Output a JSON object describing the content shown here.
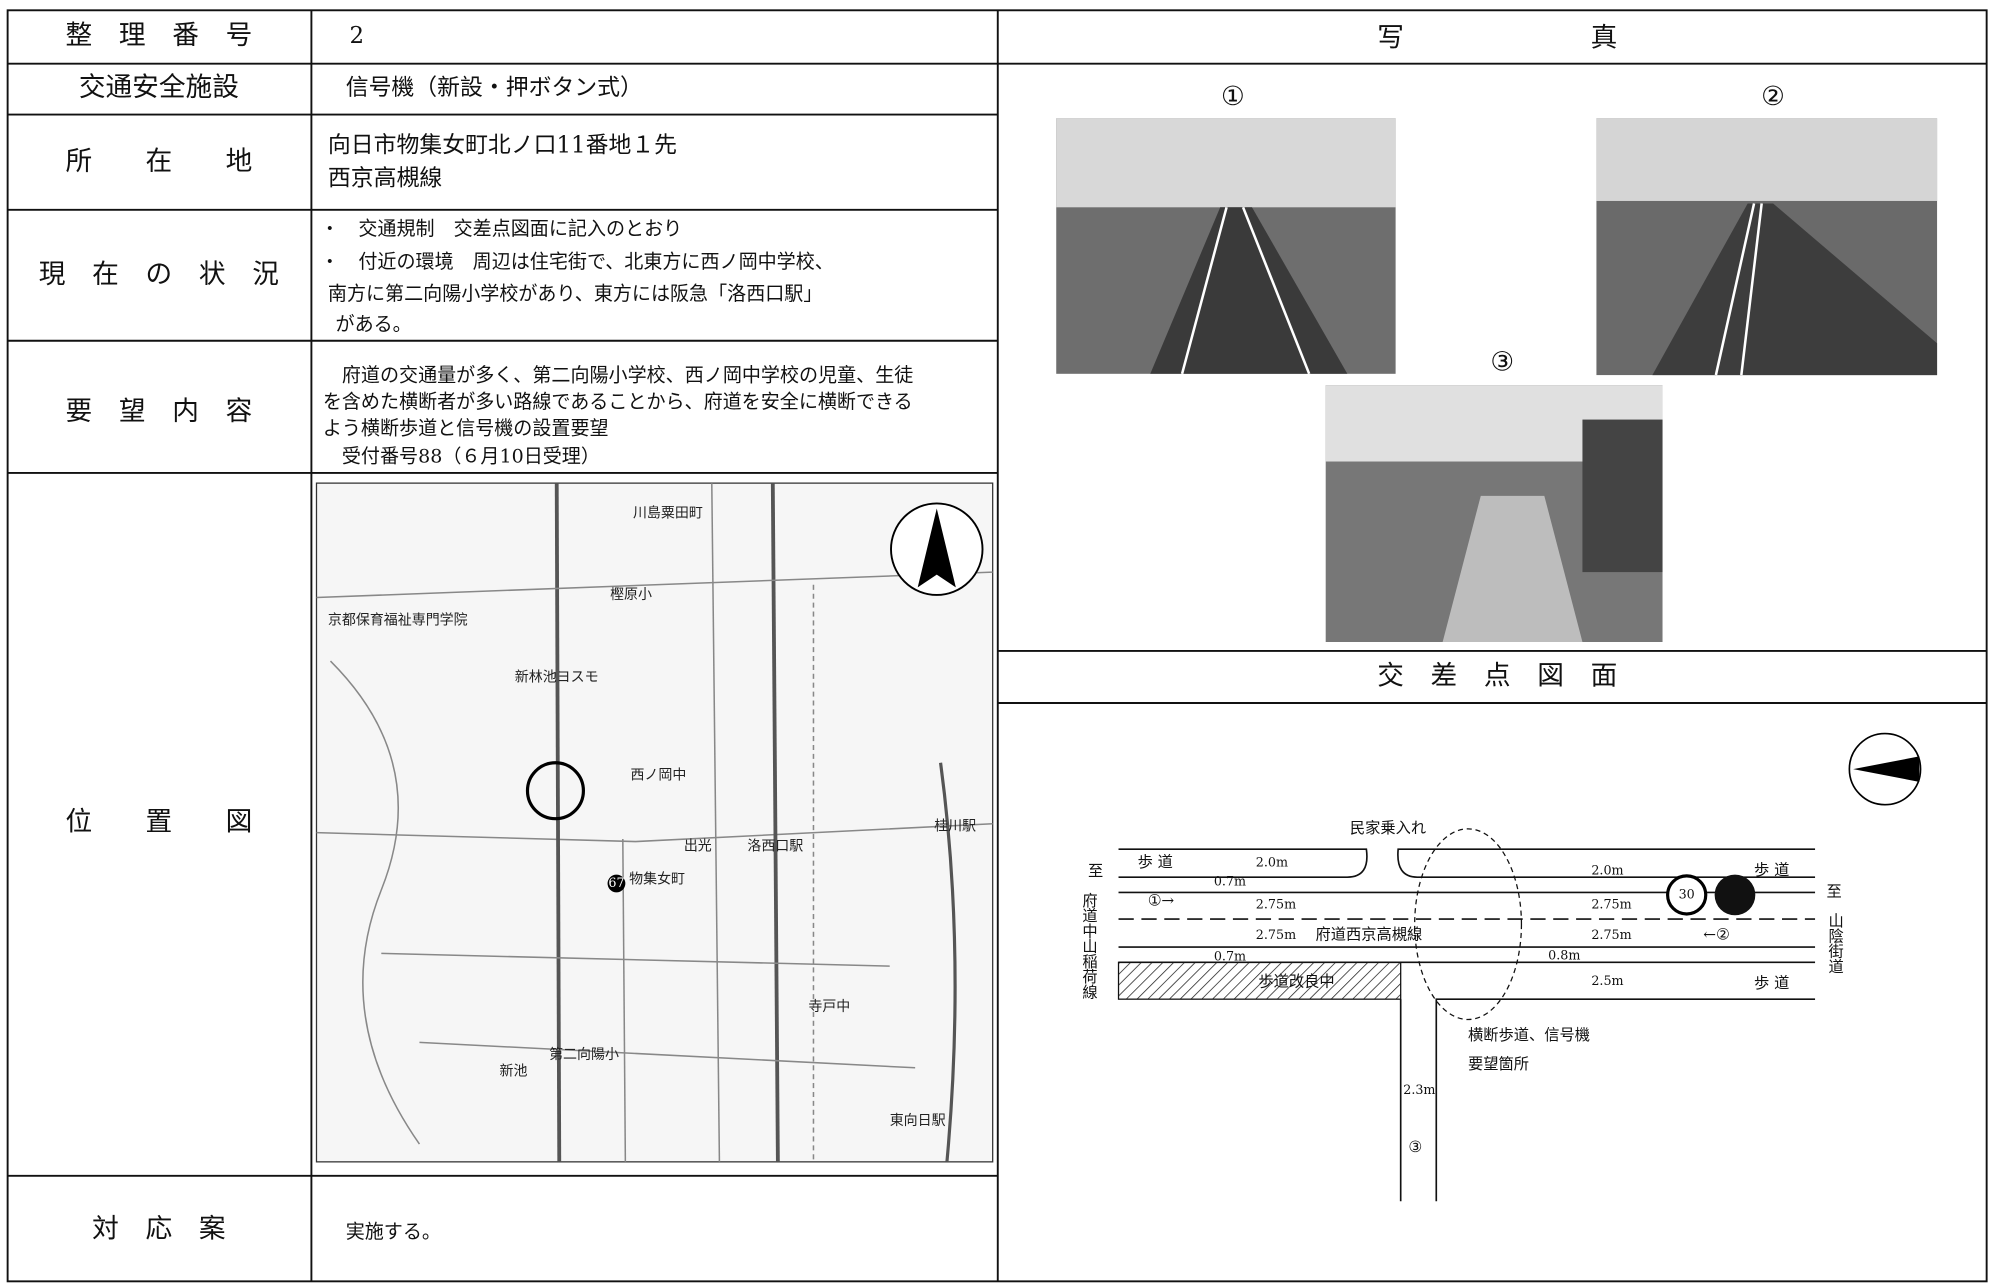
{
  "table": {
    "rows": [
      {
        "label": "整　理　番　号",
        "value": [
          "2"
        ]
      },
      {
        "label": "交通安全施設",
        "value": [
          "信号機（新設・押ボタン式）"
        ]
      },
      {
        "label": "所　　在　　地",
        "value": [
          "向日市物集女町北ノ口11番地１先",
          "西京高槻線"
        ]
      },
      {
        "label": "現　在　の　状　況",
        "value": [
          "・　交通規制　交差点図面に記入のとおり",
          "・　付近の環境　周辺は住宅街で、北東方に西ノ岡中学校、",
          "南方に第二向陽小学校があり、東方には阪急「洛西口駅」",
          "がある。"
        ]
      },
      {
        "label": "要　望　内　容",
        "value": [
          "　府道の交通量が多く、第二向陽小学校、西ノ岡中学校の児童、生徒",
          "を含めた横断者が多い路線であることから、府道を安全に横断できる",
          "よう横断歩道と信号機の設置要望",
          "　受付番号88（６月10日受理）"
        ]
      },
      {
        "label": "位　　置　　図"
      },
      {
        "label": "対　応　案",
        "value": [
          "実施する。"
        ]
      }
    ]
  },
  "map": {
    "labels": [
      "川島粟田町",
      "京都保育福祉専門学院",
      "樫原小",
      "新林池ヨスモ",
      "西ノ岡中",
      "物集女町",
      "洛西口駅",
      "桂川駅",
      "第二向陽小",
      "東向日駅",
      "新池",
      "寺戸中",
      "出光",
      "67"
    ]
  },
  "photos": {
    "title": "写　　　　　　　真",
    "items": [
      "①",
      "②",
      "③"
    ]
  },
  "diagram": {
    "title": "交　差　点　図　面",
    "labels": [
      "民家乗入れ",
      "歩 道",
      "2.0m",
      "0.7m",
      "①→",
      "2.75m",
      "2.75m",
      "府道西京高槻線",
      "0.7m",
      "歩道改良中",
      "2.0m",
      "歩 道",
      "2.75m",
      "2.75m",
      "←②",
      "0.8m",
      "2.5m",
      "歩 道",
      "30",
      "至",
      "府道中山稲荷線",
      "至",
      "山陰街道",
      "横断歩道、信号機",
      "要望箇所",
      "2.3m",
      "③"
    ]
  }
}
